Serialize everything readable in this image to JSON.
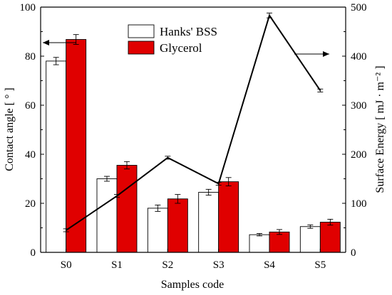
{
  "chart_data": {
    "type": "bar+line",
    "categories": [
      "S0",
      "S1",
      "S2",
      "S3",
      "S4",
      "S5"
    ],
    "xlabel": "Samples code",
    "ylabel_left": "Contact angle [ ° ]",
    "ylabel_right": "Surface Energy [ mJ · m⁻² ]",
    "ylim_left": [
      0,
      100
    ],
    "ylim_right": [
      0,
      500
    ],
    "yticks_left": [
      0,
      20,
      40,
      60,
      80,
      100
    ],
    "yticks_right": [
      0,
      100,
      200,
      300,
      400,
      500
    ],
    "legend_position": "top-center",
    "series": [
      {
        "name": "Hanks' BSS",
        "type": "bar",
        "axis": "left",
        "color": "#ffffff",
        "values": [
          78.0,
          30.0,
          18.0,
          24.5,
          7.2,
          10.5
        ],
        "errors": [
          1.5,
          1.0,
          1.3,
          1.2,
          0.5,
          0.7
        ]
      },
      {
        "name": "Glycerol",
        "type": "bar",
        "axis": "left",
        "color": "#e00000",
        "values": [
          86.8,
          35.5,
          21.8,
          28.8,
          8.3,
          12.3
        ],
        "errors": [
          2.0,
          1.5,
          1.8,
          1.7,
          1.0,
          1.2
        ]
      },
      {
        "type": "line",
        "axis": "right",
        "color": "#000000",
        "values": [
          45,
          115,
          193,
          140,
          483,
          330
        ],
        "errors": [
          3,
          3,
          3,
          3,
          5,
          3
        ]
      }
    ],
    "arrows": [
      {
        "direction": "left",
        "points_to": "left axis"
      },
      {
        "direction": "right",
        "points_to": "right axis"
      }
    ]
  }
}
